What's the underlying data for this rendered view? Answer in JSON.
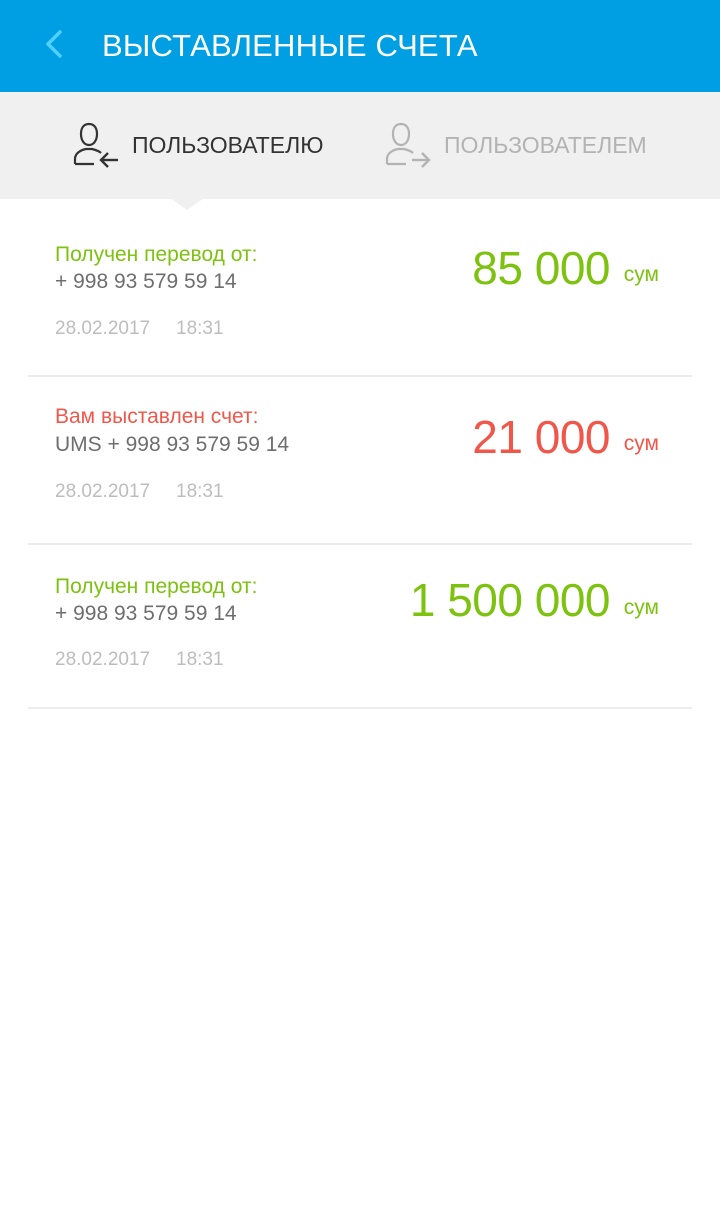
{
  "header": {
    "title": "ВЫСТАВЛЕННЫЕ СЧЕТА",
    "back_icon": "chevron-left-icon"
  },
  "tabs": [
    {
      "label": "ПОЛЬЗОВАТЕЛЮ",
      "icon": "user-arrow-in-icon",
      "active": true
    },
    {
      "label": "ПОЛЬЗОВАТЕЛЕМ",
      "icon": "user-arrow-out-icon",
      "active": false
    }
  ],
  "colors": {
    "accent": "#009fe3",
    "income": "#7cc20f",
    "invoice": "#f0574a"
  },
  "transactions": [
    {
      "title": "Получен перевод от:",
      "counterparty": "+ 998 93 579 59 14",
      "date": "28.02.2017",
      "time": "18:31",
      "amount": "85 000",
      "currency": "сум",
      "status": "received"
    },
    {
      "title": "Вам выставлен счет:",
      "counterparty": "UMS + 998 93 579 59 14",
      "date": "28.02.2017",
      "time": "18:31",
      "amount": "21 000",
      "currency": "сум",
      "status": "invoice"
    },
    {
      "title": "Получен перевод от:",
      "counterparty": "+ 998 93 579 59 14",
      "date": "28.02.2017",
      "time": "18:31",
      "amount": "1 500 000",
      "currency": "сум",
      "status": "received"
    }
  ]
}
